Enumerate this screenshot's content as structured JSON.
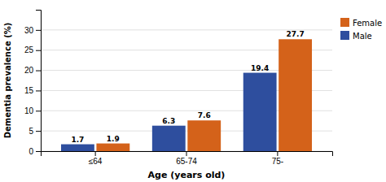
{
  "chart_data": {
    "type": "bar",
    "categories": [
      "≤64",
      "65-74",
      "75-"
    ],
    "series": [
      {
        "name": "Male",
        "color": "#2E4E9E",
        "values": [
          1.7,
          6.3,
          19.4
        ]
      },
      {
        "name": "Female",
        "color": "#D4621A",
        "values": [
          1.9,
          7.6,
          27.7
        ]
      }
    ],
    "xlabel": "Age (years old)",
    "ylabel": "Dementia prevalence (%)",
    "ylim": [
      0,
      35
    ],
    "yticks": [
      0,
      5,
      10,
      15,
      20,
      25,
      30
    ],
    "grid": true,
    "legend": "upper right",
    "data_labels": true
  }
}
